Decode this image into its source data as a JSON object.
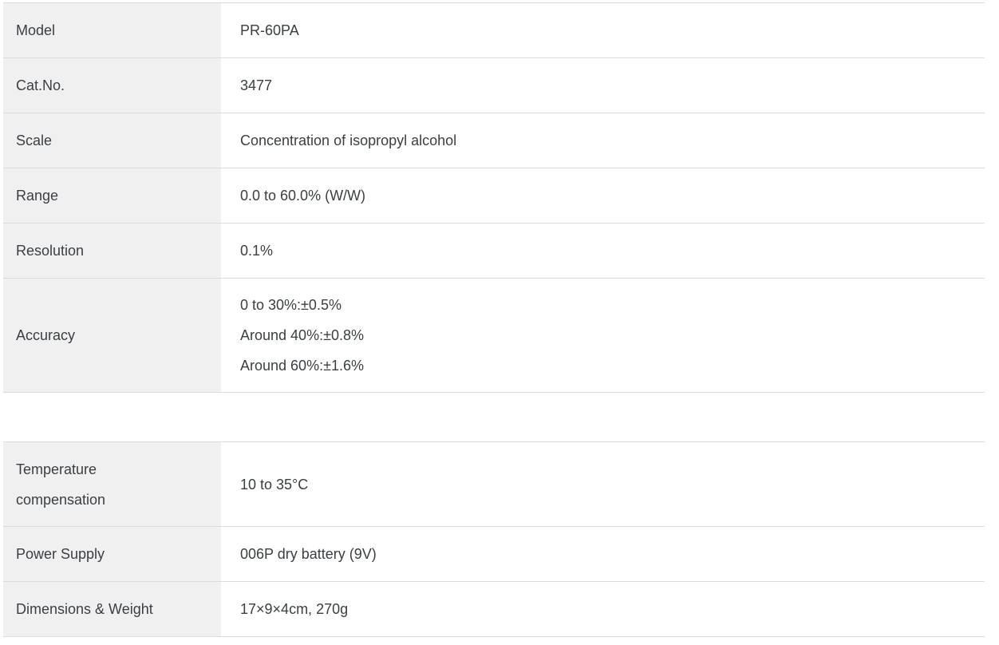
{
  "colors": {
    "label_cell_background": "#f0f0f0",
    "value_cell_background": "#ffffff",
    "border": "#d9dcde",
    "text": "#3b3e43"
  },
  "tables": [
    {
      "name": "primary-specifications",
      "rows": [
        {
          "label": "Model",
          "value": "PR-60PA"
        },
        {
          "label": "Cat.No.",
          "value": "3477"
        },
        {
          "label": "Scale",
          "value": "Concentration of isopropyl alcohol"
        },
        {
          "label": "Range",
          "value": "0.0 to 60.0% (W/W)"
        },
        {
          "label": "Resolution",
          "value": "0.1%"
        },
        {
          "label": "Accuracy",
          "value_lines": [
            "0 to 30%:±0.5%",
            "Around 40%:±0.8%",
            "Around 60%:±1.6%"
          ]
        }
      ]
    },
    {
      "name": "secondary-specifications",
      "rows": [
        {
          "label": "Temperature compensation",
          "value": "10 to 35°C"
        },
        {
          "label": "Power Supply",
          "value": "006P dry battery (9V)"
        },
        {
          "label": "Dimensions & Weight",
          "value": "17×9×4cm, 270g"
        }
      ]
    }
  ]
}
